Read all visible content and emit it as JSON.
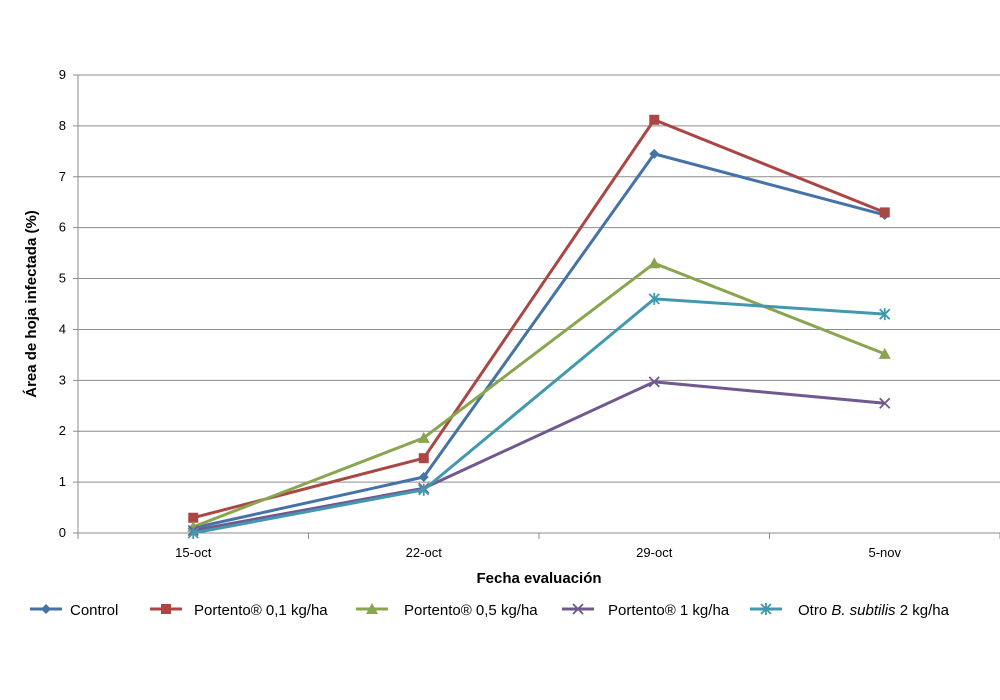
{
  "chart_data": {
    "type": "line",
    "title": "",
    "xlabel": "Fecha evaluación",
    "ylabel": "Área de hoja infectada (%)",
    "categories": [
      "15-oct",
      "22-oct",
      "29-oct",
      "5-nov"
    ],
    "ylim": [
      0,
      9
    ],
    "yticks": [
      0,
      1,
      2,
      3,
      4,
      5,
      6,
      7,
      8,
      9
    ],
    "grid": true,
    "legend_position": "bottom",
    "series": [
      {
        "name": "Control",
        "color": "#4572A7",
        "marker": "diamond",
        "values": [
          0.1,
          1.1,
          7.45,
          6.25
        ]
      },
      {
        "name": "Portento® 0,1 kg/ha",
        "color": "#AA4643",
        "marker": "square",
        "values": [
          0.3,
          1.47,
          8.12,
          6.3
        ]
      },
      {
        "name": "Portento® 0,5 kg/ha",
        "color": "#89A54E",
        "marker": "triangle",
        "values": [
          0.12,
          1.87,
          5.3,
          3.52
        ]
      },
      {
        "name": "Portento® 1 kg/ha",
        "color": "#71588F",
        "marker": "x",
        "values": [
          0.05,
          0.88,
          2.97,
          2.55
        ]
      },
      {
        "name": "Otro B. subtilis 2 kg/ha",
        "name_parts": [
          "Otro ",
          "B. subtilis",
          " 2 kg/ha"
        ],
        "color": "#4198AF",
        "marker": "star",
        "values": [
          0.0,
          0.85,
          4.6,
          4.3
        ]
      }
    ]
  }
}
